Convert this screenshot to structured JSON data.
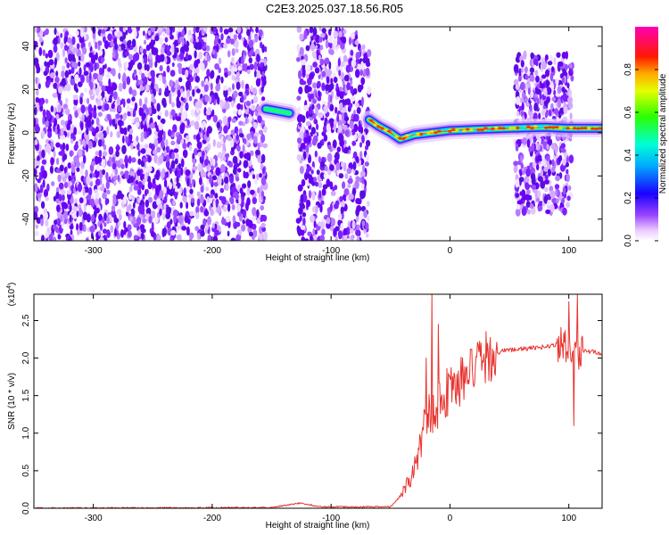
{
  "figure": {
    "title": "C2E3.2025.037.18.56.R05"
  },
  "chart_data": [
    {
      "type": "heatmap",
      "xlabel": "Height of straight line (km)",
      "ylabel": "Frequency (Hz)",
      "xlim": [
        -350,
        128
      ],
      "ylim": [
        -50,
        49
      ],
      "x_ticks": [
        -300,
        -200,
        -100,
        0,
        100
      ],
      "y_ticks": [
        -40,
        -20,
        0,
        20,
        40
      ],
      "colorbar": {
        "label": "Normalized spectral amplitude",
        "range": [
          0,
          1
        ],
        "ticks": [
          "0.0",
          "0.2",
          "0.4",
          "0.6",
          "0.8"
        ],
        "colormap": "rainbow (white-violet-blue-cyan-green-yellow-red-magenta)"
      },
      "features": {
        "noise_regions_km": [
          [
            -350,
            -155
          ],
          [
            -128,
            -68
          ],
          [
            55,
            103
          ]
        ],
        "noise_gap_km": [
          -155,
          -128
        ],
        "signal_trace": [
          {
            "x": -155,
            "y": 11
          },
          {
            "x": -145,
            "y": 10
          },
          {
            "x": -135,
            "y": 9
          },
          {
            "x": -68,
            "y": 6
          },
          {
            "x": -60,
            "y": 3
          },
          {
            "x": -50,
            "y": 0
          },
          {
            "x": -42,
            "y": -3
          },
          {
            "x": -30,
            "y": -1
          },
          {
            "x": -15,
            "y": 0
          },
          {
            "x": 0,
            "y": 1
          },
          {
            "x": 20,
            "y": 1.5
          },
          {
            "x": 50,
            "y": 2
          },
          {
            "x": 80,
            "y": 2.5
          },
          {
            "x": 100,
            "y": 2
          },
          {
            "x": 128,
            "y": 2
          }
        ]
      }
    },
    {
      "type": "line",
      "xlabel": "Height of straight line (km)",
      "ylabel": "SNR (10 * v/v)",
      "y_multiplier": "(x10^4)",
      "xlim": [
        -350,
        128
      ],
      "ylim": [
        0,
        2.85
      ],
      "x_ticks": [
        -300,
        -200,
        -100,
        0,
        100
      ],
      "y_ticks": [
        "0.0",
        "0.5",
        "1.0",
        "1.5",
        "2.0",
        "2.5"
      ],
      "color": "#e8342f",
      "series": [
        {
          "values_shape": [
            {
              "x": -350,
              "y": 0.0
            },
            {
              "x": -150,
              "y": 0.01
            },
            {
              "x": -125,
              "y": 0.07
            },
            {
              "x": -110,
              "y": 0.02
            },
            {
              "x": -50,
              "y": 0.02
            },
            {
              "x": -42,
              "y": 0.15
            },
            {
              "x": -30,
              "y": 0.5
            },
            {
              "x": -20,
              "y": 1.2
            },
            {
              "x": -10,
              "y": 1.4
            },
            {
              "x": 0,
              "y": 1.6
            },
            {
              "x": 10,
              "y": 1.7
            },
            {
              "x": 20,
              "y": 1.85
            },
            {
              "x": 30,
              "y": 2.0
            },
            {
              "x": 45,
              "y": 2.1
            },
            {
              "x": 60,
              "y": 2.12
            },
            {
              "x": 80,
              "y": 2.15
            },
            {
              "x": 95,
              "y": 2.2
            },
            {
              "x": 105,
              "y": 2.1
            },
            {
              "x": 115,
              "y": 2.1
            },
            {
              "x": 128,
              "y": 2.05
            }
          ],
          "spikes": [
            {
              "x": -15,
              "y": 2.85
            },
            {
              "x": -20,
              "y": 2.0
            },
            {
              "x": -10,
              "y": 2.45
            },
            {
              "x": 100,
              "y": 2.75
            },
            {
              "x": 107,
              "y": 2.85
            },
            {
              "x": 104,
              "y": 1.1
            }
          ]
        }
      ]
    }
  ]
}
